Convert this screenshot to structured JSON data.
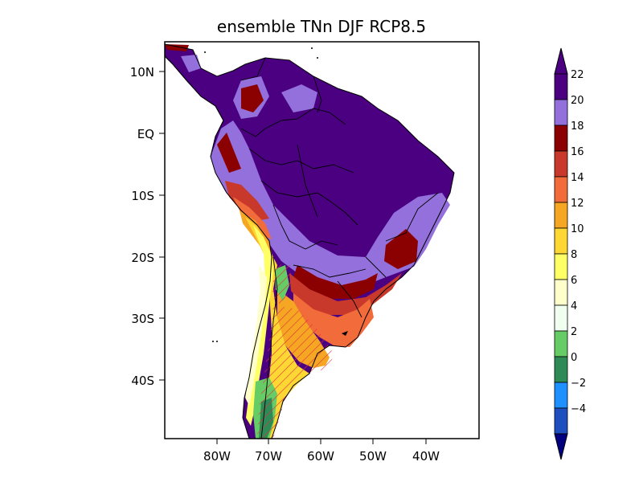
{
  "title": "ensemble TNn DJF RCP8.5",
  "map": {
    "lat_range": [
      -50,
      15
    ],
    "lon_range": [
      -90,
      -30
    ],
    "lat_ticks": [
      "10N",
      "EQ",
      "10S",
      "20S",
      "30S",
      "40S"
    ],
    "lon_ticks": [
      "80W",
      "70W",
      "60W",
      "50W",
      "40W"
    ],
    "hatching": "significance hatching over southern Andes / Patagonia / central Argentina"
  },
  "colorbar": {
    "levels": [
      "22",
      "20",
      "18",
      "16",
      "14",
      "12",
      "10",
      "8",
      "6",
      "4",
      "2",
      "0",
      "−2",
      "−4"
    ],
    "colors": [
      "#4b0082",
      "#9370db",
      "#8b0000",
      "#c8392b",
      "#f26b3a",
      "#f5a623",
      "#fdd835",
      "#ffff66",
      "#ffffcc",
      "#f0fff0",
      "#66cc66",
      "#2e8b57",
      "#1e90ff",
      "#1f4fbf",
      "#0a1f7a"
    ],
    "top_arrow_color": "#4b0082",
    "bottom_arrow_color": "#000080"
  }
}
